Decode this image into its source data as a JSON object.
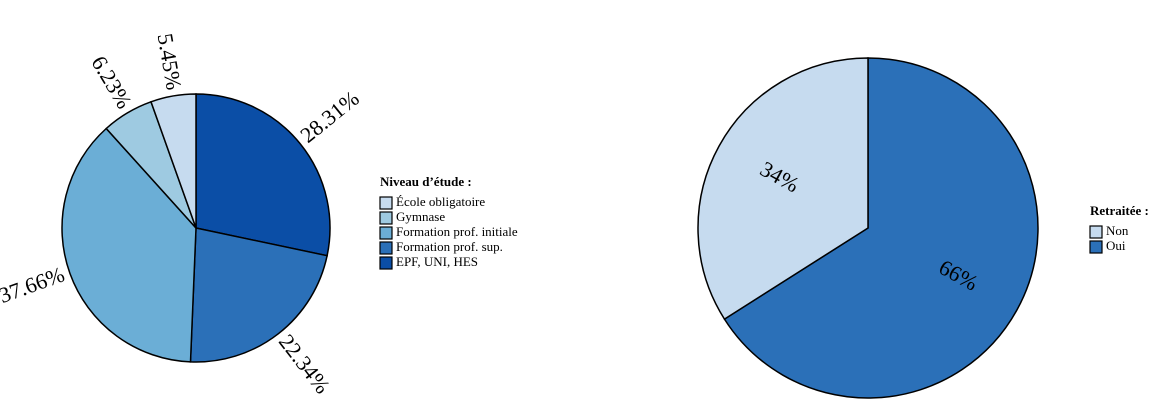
{
  "chart_data": [
    {
      "type": "pie",
      "legend_title": "Niveau d’étude :",
      "categories": [
        "École obligatoire",
        "Gymnase",
        "Formation prof. initiale",
        "Formation prof. sup.",
        "EPF, UNI, HES"
      ],
      "values": [
        5.45,
        6.23,
        37.66,
        22.34,
        28.31
      ],
      "value_labels": [
        "5.45%",
        "6.23%",
        "37.66%",
        "22.34%",
        "28.31%"
      ],
      "colors": [
        "#c6dbef",
        "#9ecae1",
        "#6baed6",
        "#2b70b8",
        "#0b4ea6"
      ]
    },
    {
      "type": "pie",
      "legend_title": "Retraitée :",
      "categories": [
        "Non",
        "Oui"
      ],
      "values": [
        34,
        66
      ],
      "value_labels": [
        "34%",
        "66%"
      ],
      "colors": [
        "#c6dbef",
        "#2b70b8"
      ]
    }
  ]
}
